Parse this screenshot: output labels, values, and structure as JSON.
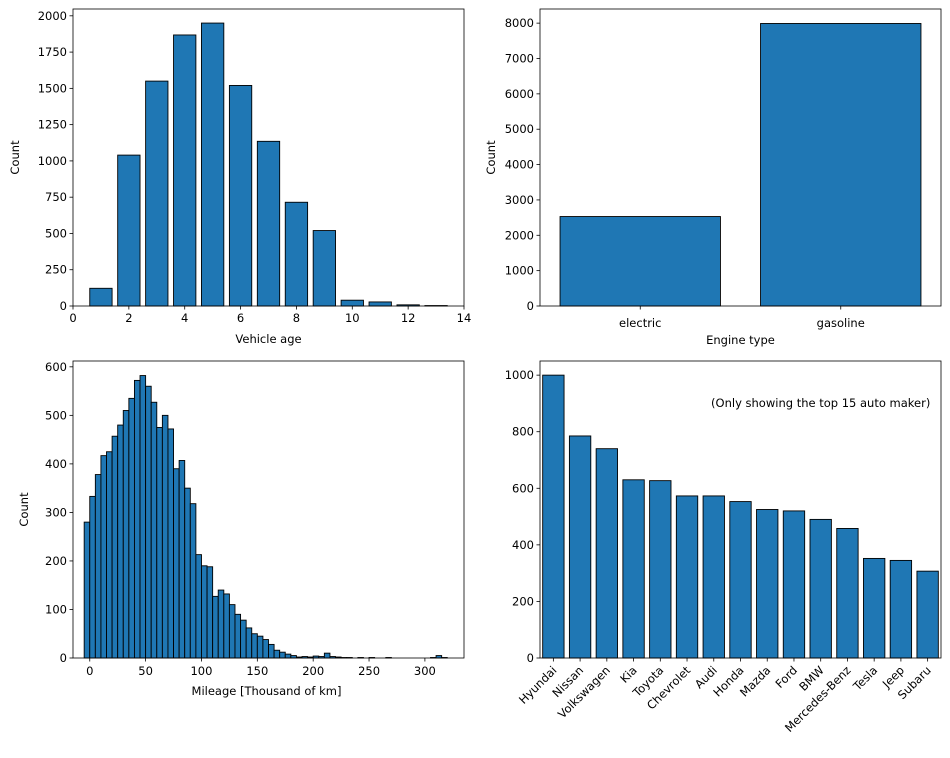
{
  "chart_data": [
    {
      "type": "bar",
      "x": [
        1,
        2,
        3,
        4,
        5,
        6,
        7,
        8,
        9,
        10,
        11,
        12,
        13
      ],
      "values": [
        122,
        1040,
        1550,
        1868,
        1950,
        1520,
        1135,
        715,
        520,
        40,
        28,
        8,
        3
      ],
      "xlabel": "Vehicle age",
      "ylabel": "Count",
      "xlim": [
        0,
        14
      ],
      "ylim": [
        0,
        2047
      ],
      "xticks": [
        0,
        2,
        4,
        6,
        8,
        10,
        12,
        14
      ],
      "yticks": [
        0,
        250,
        500,
        750,
        1000,
        1250,
        1500,
        1750,
        2000
      ],
      "grid": false,
      "color": "#1f77b4"
    },
    {
      "type": "bar",
      "categories": [
        "electric",
        "gasoline"
      ],
      "values": [
        2530,
        7990
      ],
      "xlabel": "Engine type",
      "ylabel": "Count",
      "ylim": [
        0,
        8400
      ],
      "yticks": [
        0,
        1000,
        2000,
        3000,
        4000,
        5000,
        6000,
        7000,
        8000
      ],
      "grid": false,
      "color": "#1f77b4"
    },
    {
      "type": "bar",
      "bin_width": 5,
      "bin_starts": [
        -5,
        0,
        5,
        10,
        15,
        20,
        25,
        30,
        35,
        40,
        45,
        50,
        55,
        60,
        65,
        70,
        75,
        80,
        85,
        90,
        95,
        100,
        105,
        110,
        115,
        120,
        125,
        130,
        135,
        140,
        145,
        150,
        155,
        160,
        165,
        170,
        175,
        180,
        185,
        190,
        195,
        200,
        205,
        210,
        215,
        220,
        225,
        230,
        235,
        240,
        245,
        250,
        255,
        260,
        265,
        270,
        275,
        280,
        285,
        290,
        295,
        300,
        305,
        310,
        315
      ],
      "values": [
        280,
        333,
        378,
        417,
        425,
        457,
        480,
        510,
        535,
        572,
        582,
        560,
        527,
        475,
        500,
        472,
        390,
        407,
        350,
        318,
        213,
        190,
        188,
        127,
        140,
        132,
        110,
        90,
        78,
        62,
        50,
        45,
        38,
        28,
        16,
        12,
        8,
        5,
        2,
        3,
        2,
        4,
        3,
        10,
        3,
        2,
        1,
        1,
        0,
        1,
        0,
        1,
        0,
        0,
        1,
        0,
        0,
        0,
        0,
        0,
        0,
        0,
        1,
        5,
        1
      ],
      "xlabel": "Mileage [Thousand of km]",
      "ylabel": "Count",
      "xlim": [
        -15,
        335
      ],
      "ylim": [
        0,
        612
      ],
      "xticks": [
        0,
        50,
        100,
        150,
        200,
        250,
        300
      ],
      "yticks": [
        0,
        100,
        200,
        300,
        400,
        500,
        600
      ],
      "grid": false,
      "color": "#1f77b4"
    },
    {
      "type": "bar",
      "categories": [
        "Hyundai",
        "Nissan",
        "Volkswagen",
        "Kia",
        "Toyota",
        "Chevrolet",
        "Audi",
        "Honda",
        "Mazda",
        "Ford",
        "BMW",
        "Mercedes-Benz",
        "Tesla",
        "Jeep",
        "Subaru"
      ],
      "values": [
        1000,
        785,
        740,
        630,
        627,
        573,
        573,
        553,
        525,
        520,
        490,
        458,
        352,
        345,
        307
      ],
      "annotation": "(Only showing the top 15 auto maker)",
      "ylim": [
        0,
        1050
      ],
      "yticks": [
        0,
        200,
        400,
        600,
        800,
        1000
      ],
      "grid": false,
      "color": "#1f77b4"
    }
  ]
}
